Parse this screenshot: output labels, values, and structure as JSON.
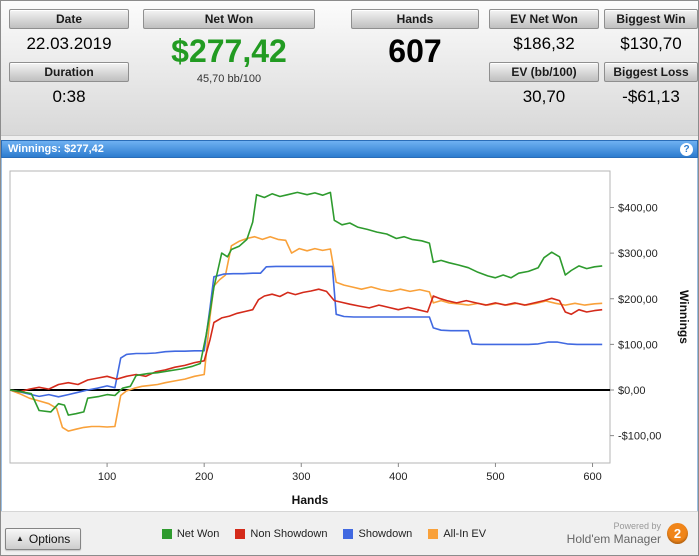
{
  "header": {
    "date_label": "Date",
    "date_value": "22.03.2019",
    "duration_label": "Duration",
    "duration_value": "0:38",
    "net_won_label": "Net Won",
    "net_won_value": "$277,42",
    "net_won_sub": "45,70 bb/100",
    "hands_label": "Hands",
    "hands_value": "607",
    "ev_net_won_label": "EV Net Won",
    "ev_net_won_value": "$186,32",
    "ev_bb100_label": "EV (bb/100)",
    "ev_bb100_value": "30,70",
    "biggest_win_label": "Biggest Win",
    "biggest_win_value": "$130,70",
    "biggest_loss_label": "Biggest Loss",
    "biggest_loss_value": "-$61,13"
  },
  "panel": {
    "title": "Winnings: $277,42",
    "help_icon": "?"
  },
  "footer": {
    "options_label": "Options",
    "options_arrow": "▲",
    "powered_by": "Powered by",
    "brand": "Hold'em Manager",
    "brand_badge": "2"
  },
  "colors": {
    "net_won_text": "#229b22",
    "brand_badge_bg": "#f08519"
  },
  "chart_data": {
    "type": "line",
    "title": "Winnings: $277,42",
    "xlabel": "Hands",
    "ylabel": "Winnings",
    "xlim": [
      0,
      618
    ],
    "ylim": [
      -160,
      480
    ],
    "xticks": [
      100,
      200,
      300,
      400,
      500,
      600
    ],
    "yticks": [
      {
        "value": 400,
        "label": "$400,00"
      },
      {
        "value": 300,
        "label": "$300,00"
      },
      {
        "value": 200,
        "label": "$200,00"
      },
      {
        "value": 100,
        "label": "$100,00"
      },
      {
        "value": 0,
        "label": "$0,00"
      },
      {
        "value": -100,
        "label": "-$100,00"
      }
    ],
    "zero_line": true,
    "grid": false,
    "legend_position": "bottom",
    "series": [
      {
        "name": "Net Won",
        "color": "#2e9b2e",
        "points": [
          [
            0,
            0
          ],
          [
            12,
            -4
          ],
          [
            22,
            -8
          ],
          [
            30,
            -45
          ],
          [
            42,
            -48
          ],
          [
            50,
            -30
          ],
          [
            56,
            -33
          ],
          [
            60,
            -55
          ],
          [
            68,
            -52
          ],
          [
            76,
            -48
          ],
          [
            80,
            -18
          ],
          [
            92,
            -14
          ],
          [
            100,
            -10
          ],
          [
            108,
            -12
          ],
          [
            116,
            4
          ],
          [
            124,
            8
          ],
          [
            130,
            32
          ],
          [
            142,
            36
          ],
          [
            152,
            38
          ],
          [
            164,
            42
          ],
          [
            176,
            46
          ],
          [
            188,
            52
          ],
          [
            196,
            58
          ],
          [
            202,
            120
          ],
          [
            206,
            170
          ],
          [
            210,
            225
          ],
          [
            214,
            262
          ],
          [
            218,
            300
          ],
          [
            224,
            292
          ],
          [
            228,
            308
          ],
          [
            236,
            315
          ],
          [
            244,
            330
          ],
          [
            250,
            368
          ],
          [
            254,
            428
          ],
          [
            262,
            422
          ],
          [
            270,
            430
          ],
          [
            278,
            424
          ],
          [
            286,
            428
          ],
          [
            296,
            433
          ],
          [
            306,
            428
          ],
          [
            314,
            432
          ],
          [
            322,
            427
          ],
          [
            330,
            433
          ],
          [
            334,
            372
          ],
          [
            342,
            362
          ],
          [
            350,
            366
          ],
          [
            358,
            357
          ],
          [
            368,
            352
          ],
          [
            378,
            346
          ],
          [
            388,
            342
          ],
          [
            398,
            332
          ],
          [
            406,
            336
          ],
          [
            414,
            330
          ],
          [
            424,
            327
          ],
          [
            432,
            322
          ],
          [
            436,
            280
          ],
          [
            444,
            284
          ],
          [
            452,
            279
          ],
          [
            462,
            274
          ],
          [
            472,
            268
          ],
          [
            482,
            258
          ],
          [
            492,
            250
          ],
          [
            500,
            246
          ],
          [
            508,
            252
          ],
          [
            516,
            246
          ],
          [
            524,
            256
          ],
          [
            534,
            260
          ],
          [
            544,
            268
          ],
          [
            550,
            290
          ],
          [
            558,
            302
          ],
          [
            566,
            292
          ],
          [
            572,
            252
          ],
          [
            578,
            262
          ],
          [
            586,
            272
          ],
          [
            594,
            266
          ],
          [
            602,
            270
          ],
          [
            610,
            272
          ]
        ]
      },
      {
        "name": "Non Showdown",
        "color": "#d42a1a",
        "points": [
          [
            0,
            0
          ],
          [
            10,
            -4
          ],
          [
            20,
            2
          ],
          [
            30,
            6
          ],
          [
            40,
            2
          ],
          [
            50,
            12
          ],
          [
            60,
            16
          ],
          [
            70,
            12
          ],
          [
            80,
            22
          ],
          [
            90,
            26
          ],
          [
            100,
            30
          ],
          [
            110,
            24
          ],
          [
            120,
            30
          ],
          [
            130,
            34
          ],
          [
            140,
            30
          ],
          [
            150,
            40
          ],
          [
            160,
            44
          ],
          [
            170,
            50
          ],
          [
            180,
            54
          ],
          [
            190,
            60
          ],
          [
            200,
            64
          ],
          [
            206,
            110
          ],
          [
            210,
            148
          ],
          [
            218,
            158
          ],
          [
            226,
            162
          ],
          [
            234,
            168
          ],
          [
            242,
            172
          ],
          [
            250,
            176
          ],
          [
            256,
            198
          ],
          [
            262,
            206
          ],
          [
            270,
            210
          ],
          [
            278,
            205
          ],
          [
            286,
            214
          ],
          [
            294,
            209
          ],
          [
            302,
            214
          ],
          [
            310,
            217
          ],
          [
            318,
            221
          ],
          [
            326,
            216
          ],
          [
            334,
            196
          ],
          [
            342,
            192
          ],
          [
            350,
            188
          ],
          [
            360,
            184
          ],
          [
            370,
            180
          ],
          [
            380,
            186
          ],
          [
            390,
            181
          ],
          [
            400,
            176
          ],
          [
            410,
            181
          ],
          [
            420,
            176
          ],
          [
            430,
            171
          ],
          [
            436,
            206
          ],
          [
            442,
            201
          ],
          [
            450,
            196
          ],
          [
            460,
            191
          ],
          [
            470,
            196
          ],
          [
            480,
            191
          ],
          [
            490,
            186
          ],
          [
            500,
            191
          ],
          [
            510,
            186
          ],
          [
            520,
            191
          ],
          [
            530,
            186
          ],
          [
            540,
            191
          ],
          [
            550,
            196
          ],
          [
            558,
            201
          ],
          [
            566,
            196
          ],
          [
            572,
            171
          ],
          [
            578,
            166
          ],
          [
            586,
            176
          ],
          [
            594,
            171
          ],
          [
            602,
            174
          ],
          [
            610,
            176
          ]
        ]
      },
      {
        "name": "Showdown",
        "color": "#4169e1",
        "points": [
          [
            0,
            0
          ],
          [
            10,
            -4
          ],
          [
            20,
            -9
          ],
          [
            30,
            -14
          ],
          [
            40,
            -10
          ],
          [
            50,
            -15
          ],
          [
            60,
            -10
          ],
          [
            70,
            -5
          ],
          [
            80,
            0
          ],
          [
            90,
            4
          ],
          [
            100,
            9
          ],
          [
            108,
            5
          ],
          [
            114,
            70
          ],
          [
            120,
            78
          ],
          [
            130,
            80
          ],
          [
            140,
            80
          ],
          [
            150,
            81
          ],
          [
            160,
            84
          ],
          [
            170,
            85
          ],
          [
            180,
            85
          ],
          [
            190,
            86
          ],
          [
            200,
            86
          ],
          [
            206,
            180
          ],
          [
            210,
            248
          ],
          [
            220,
            254
          ],
          [
            230,
            255
          ],
          [
            240,
            255
          ],
          [
            250,
            256
          ],
          [
            258,
            256
          ],
          [
            264,
            270
          ],
          [
            274,
            271
          ],
          [
            284,
            271
          ],
          [
            294,
            271
          ],
          [
            304,
            271
          ],
          [
            314,
            271
          ],
          [
            324,
            271
          ],
          [
            332,
            271
          ],
          [
            336,
            166
          ],
          [
            344,
            161
          ],
          [
            354,
            160
          ],
          [
            364,
            160
          ],
          [
            374,
            160
          ],
          [
            384,
            160
          ],
          [
            394,
            160
          ],
          [
            404,
            160
          ],
          [
            414,
            160
          ],
          [
            424,
            160
          ],
          [
            432,
            160
          ],
          [
            436,
            136
          ],
          [
            444,
            131
          ],
          [
            454,
            130
          ],
          [
            464,
            130
          ],
          [
            472,
            130
          ],
          [
            476,
            101
          ],
          [
            484,
            100
          ],
          [
            494,
            100
          ],
          [
            504,
            100
          ],
          [
            514,
            100
          ],
          [
            524,
            100
          ],
          [
            534,
            100
          ],
          [
            544,
            101
          ],
          [
            554,
            105
          ],
          [
            564,
            105
          ],
          [
            574,
            101
          ],
          [
            584,
            100
          ],
          [
            594,
            100
          ],
          [
            602,
            100
          ],
          [
            610,
            100
          ]
        ]
      },
      {
        "name": "All-In EV",
        "color": "#f9a13a",
        "points": [
          [
            0,
            0
          ],
          [
            10,
            -8
          ],
          [
            20,
            -18
          ],
          [
            30,
            -24
          ],
          [
            40,
            -30
          ],
          [
            48,
            -40
          ],
          [
            54,
            -82
          ],
          [
            60,
            -90
          ],
          [
            68,
            -86
          ],
          [
            76,
            -82
          ],
          [
            84,
            -80
          ],
          [
            92,
            -80
          ],
          [
            100,
            -81
          ],
          [
            108,
            -80
          ],
          [
            114,
            -12
          ],
          [
            120,
            -2
          ],
          [
            128,
            4
          ],
          [
            136,
            8
          ],
          [
            144,
            10
          ],
          [
            152,
            12
          ],
          [
            160,
            16
          ],
          [
            170,
            20
          ],
          [
            180,
            24
          ],
          [
            190,
            30
          ],
          [
            200,
            34
          ],
          [
            206,
            160
          ],
          [
            210,
            228
          ],
          [
            216,
            242
          ],
          [
            222,
            252
          ],
          [
            228,
            316
          ],
          [
            236,
            326
          ],
          [
            244,
            332
          ],
          [
            252,
            336
          ],
          [
            260,
            330
          ],
          [
            268,
            336
          ],
          [
            276,
            330
          ],
          [
            284,
            328
          ],
          [
            290,
            300
          ],
          [
            298,
            310
          ],
          [
            306,
            305
          ],
          [
            314,
            310
          ],
          [
            322,
            306
          ],
          [
            330,
            309
          ],
          [
            336,
            236
          ],
          [
            344,
            230
          ],
          [
            352,
            226
          ],
          [
            362,
            221
          ],
          [
            372,
            226
          ],
          [
            382,
            220
          ],
          [
            392,
            216
          ],
          [
            402,
            221
          ],
          [
            412,
            216
          ],
          [
            422,
            220
          ],
          [
            432,
            215
          ],
          [
            436,
            191
          ],
          [
            444,
            196
          ],
          [
            452,
            191
          ],
          [
            462,
            189
          ],
          [
            472,
            186
          ],
          [
            482,
            190
          ],
          [
            492,
            186
          ],
          [
            502,
            190
          ],
          [
            512,
            186
          ],
          [
            522,
            190
          ],
          [
            532,
            186
          ],
          [
            542,
            190
          ],
          [
            552,
            195
          ],
          [
            562,
            190
          ],
          [
            572,
            186
          ],
          [
            582,
            190
          ],
          [
            592,
            186
          ],
          [
            602,
            189
          ],
          [
            610,
            190
          ]
        ]
      }
    ]
  }
}
